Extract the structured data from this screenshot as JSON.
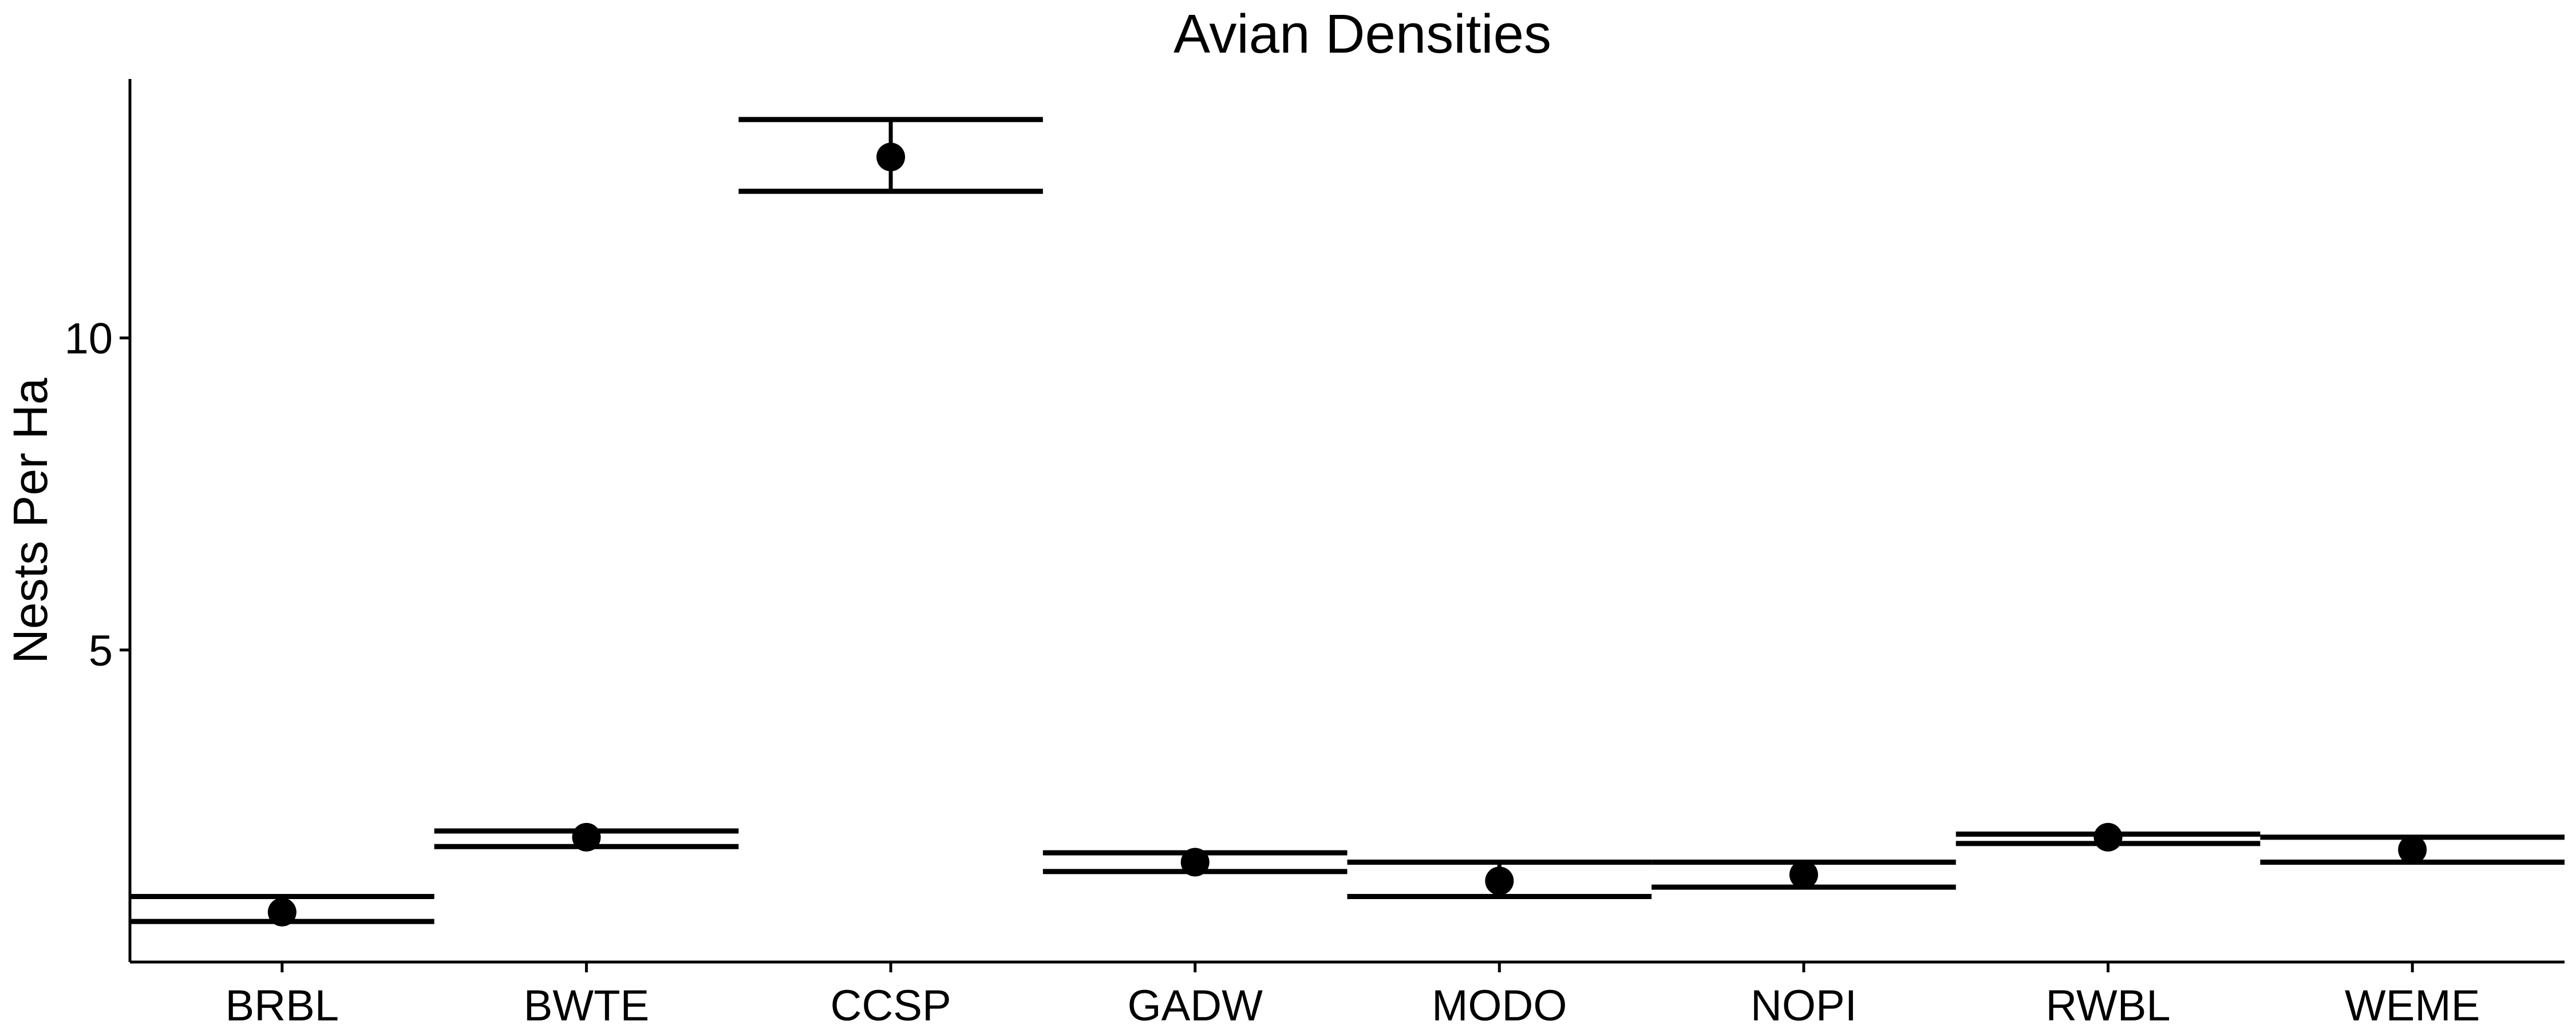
{
  "chart_data": {
    "type": "scatter",
    "title": "Avian Densities",
    "xlabel": "",
    "ylabel": "Nests Per Ha",
    "categories": [
      "BRBL",
      "BWTE",
      "CCSP",
      "GADW",
      "MODO",
      "NOPI",
      "RWBL",
      "WEME"
    ],
    "estimate": [
      0.8,
      2.0,
      12.9,
      1.6,
      1.3,
      1.4,
      2.0,
      1.8
    ],
    "lower": [
      0.65,
      1.85,
      12.35,
      1.45,
      1.05,
      1.2,
      1.9,
      1.6
    ],
    "upper": [
      1.05,
      2.1,
      13.5,
      1.75,
      1.6,
      1.6,
      2.05,
      2.0
    ],
    "y_ticks": [
      5,
      10
    ],
    "y_tick_labels": [
      "5",
      "10"
    ],
    "ylim": [
      0,
      14.15
    ],
    "grid": false,
    "legend": "none",
    "colors": {
      "mark": "#000000",
      "axis": "#000000",
      "background": "#ffffff"
    }
  }
}
